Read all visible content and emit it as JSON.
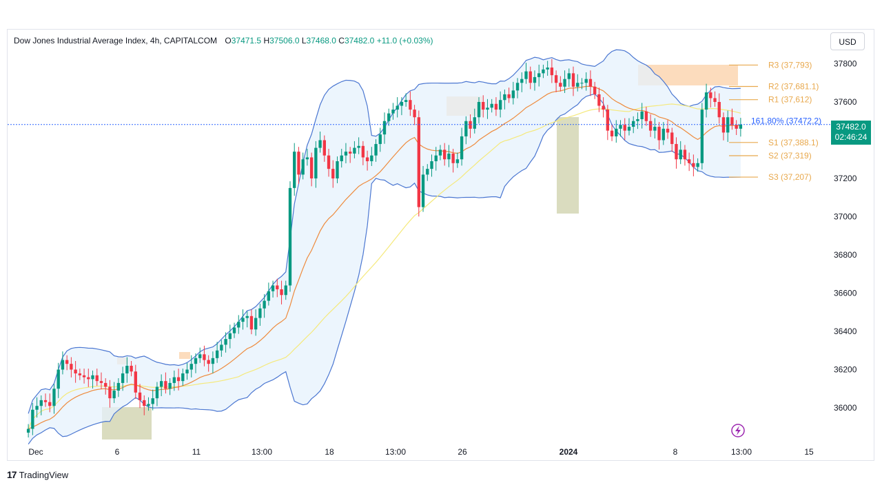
{
  "header": {
    "symbol": "Dow Jones Industrial Average Index, 4h, CAPITALCOM",
    "open_label": "O",
    "open": "37471.5",
    "high_label": "H",
    "high": "37506.0",
    "low_label": "L",
    "low": "37468.0",
    "close_label": "C",
    "close": "37482.0",
    "change": "+11.0 (+0.03%)"
  },
  "currency": "USD",
  "last_price": {
    "price": "37482.0",
    "countdown": "02:46:24"
  },
  "footer": {
    "logo_text": "TradingView"
  },
  "colors": {
    "up": "#089981",
    "down": "#f23645",
    "bb": "#4a76d1",
    "bb_fill": "#e6f1fc",
    "ema": "#ee8a3c",
    "sma": "#f5e97a",
    "pivot": "#e8a84c",
    "zone_supply": "#fcd8b6",
    "zone_demand": "#d6d8b8"
  },
  "chart_data": {
    "type": "candlestick",
    "ylim": [
      35850,
      37900
    ],
    "y_ticks": [
      36000,
      36200,
      36400,
      36600,
      36800,
      37000,
      37200,
      37400,
      37600,
      37800
    ],
    "x_ticks": [
      "Dec",
      "6",
      "11",
      "13:00",
      "18",
      "13:00",
      "26",
      "2024",
      "8",
      "13:00",
      "15"
    ],
    "pivots": [
      {
        "label": "R3 (37,793)",
        "value": 37793
      },
      {
        "label": "R2 (37,681.1)",
        "value": 37681.1
      },
      {
        "label": "R1 (37,612)",
        "value": 37612
      },
      {
        "label": "S1 (37,388.1)",
        "value": 37388.1
      },
      {
        "label": "S2 (37,319)",
        "value": 37319
      },
      {
        "label": "S3 (37,207)",
        "value": 37207
      }
    ],
    "fib": {
      "label": "161.80% (37472.2)",
      "value": 37472.2
    },
    "closes": [
      35890,
      35990,
      36010,
      36040,
      36030,
      36010,
      36100,
      36200,
      36250,
      36230,
      36200,
      36180,
      36170,
      36160,
      36150,
      36170,
      36140,
      36130,
      36110,
      36050,
      36090,
      36130,
      36180,
      36220,
      36190,
      36080,
      36040,
      36010,
      36020,
      36050,
      36110,
      36140,
      36100,
      36130,
      36160,
      36140,
      36180,
      36200,
      36230,
      36260,
      36280,
      36250,
      36230,
      36260,
      36300,
      36330,
      36360,
      36390,
      36420,
      36450,
      36470,
      36480,
      36410,
      36470,
      36520,
      36560,
      36610,
      36640,
      36620,
      36590,
      36640,
      37150,
      37340,
      37220,
      37300,
      37310,
      37200,
      37360,
      37400,
      37320,
      37250,
      37200,
      37290,
      37320,
      37340,
      37330,
      37360,
      37370,
      37310,
      37290,
      37320,
      37380,
      37430,
      37500,
      37540,
      37560,
      37580,
      37600,
      37610,
      37560,
      37520,
      37050,
      37220,
      37250,
      37290,
      37320,
      37350,
      37300,
      37330,
      37280,
      37300,
      37420,
      37500,
      37460,
      37520,
      37600,
      37560,
      37570,
      37590,
      37560,
      37610,
      37640,
      37620,
      37660,
      37700,
      37720,
      37760,
      37700,
      37730,
      37750,
      37770,
      37780,
      37740,
      37700,
      37680,
      37720,
      37750,
      37680,
      37700,
      37700,
      37720,
      37680,
      37640,
      37580,
      37560,
      37450,
      37420,
      37460,
      37480,
      37450,
      37470,
      37500,
      37510,
      37550,
      37500,
      37450,
      37470,
      37400,
      37460,
      37440,
      37380,
      37300,
      37350,
      37300,
      37280,
      37260,
      37280,
      37560,
      37650,
      37620,
      37600,
      37520,
      37440,
      37520,
      37480,
      37460,
      37482
    ],
    "bollinger_upper_visible": true,
    "indicators": [
      "Bollinger Bands",
      "EMA",
      "SMA"
    ]
  }
}
